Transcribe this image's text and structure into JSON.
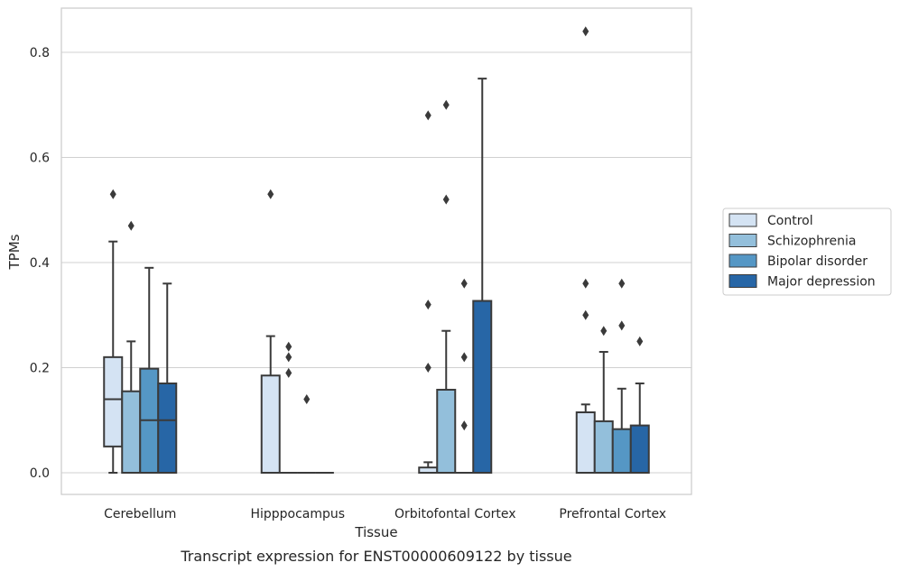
{
  "caption": "Transcript expression for ENST00000609122 by tissue",
  "colors": {
    "Control": "#d4e3f3",
    "Schizophrenia": "#93bfdb",
    "Bipolar disorder": "#5597c5",
    "Major depression": "#2766a6",
    "edge": "#3a3a3a",
    "grid": "#d0d0d0",
    "frame": "#cccccc"
  },
  "chart_data": {
    "type": "box",
    "xlabel": "Tissue",
    "ylabel": "TPMs",
    "ylim": [
      -0.04,
      0.885
    ],
    "yticks": [
      0.0,
      0.2,
      0.4,
      0.6,
      0.8
    ],
    "ytick_labels": [
      "0.0",
      "0.2",
      "0.4",
      "0.6",
      "0.8"
    ],
    "grid": "horizontal",
    "legend_position": "right",
    "categories": [
      "Cerebellum",
      "Hipppocampus",
      "Orbitofontal Cortex",
      "Prefrontal Cortex"
    ],
    "series": [
      {
        "name": "Control",
        "boxes": [
          {
            "q1": 0.05,
            "median": 0.14,
            "q3": 0.22,
            "whislo": 0.0,
            "whishi": 0.44,
            "fliers": [
              0.53
            ]
          },
          {
            "q1": 0.0,
            "median": 0.0,
            "q3": 0.185,
            "whislo": 0.0,
            "whishi": 0.26,
            "fliers": [
              0.53
            ]
          },
          {
            "q1": 0.0,
            "median": 0.0,
            "q3": 0.01,
            "whislo": 0.0,
            "whishi": 0.02,
            "fliers": [
              0.2,
              0.32,
              0.68
            ]
          },
          {
            "q1": 0.0,
            "median": 0.115,
            "q3": 0.115,
            "whislo": 0.0,
            "whishi": 0.13,
            "fliers": [
              0.3,
              0.36,
              0.84
            ]
          }
        ]
      },
      {
        "name": "Schizophrenia",
        "boxes": [
          {
            "q1": 0.0,
            "median": 0.0,
            "q3": 0.155,
            "whislo": 0.0,
            "whishi": 0.25,
            "fliers": [
              0.47
            ]
          },
          {
            "q1": 0.0,
            "median": 0.0,
            "q3": 0.0,
            "whislo": 0.0,
            "whishi": 0.0,
            "fliers": [
              0.19,
              0.22,
              0.24
            ]
          },
          {
            "q1": 0.0,
            "median": 0.0,
            "q3": 0.158,
            "whislo": 0.0,
            "whishi": 0.27,
            "fliers": [
              0.52,
              0.7
            ]
          },
          {
            "q1": 0.0,
            "median": 0.0,
            "q3": 0.098,
            "whislo": 0.0,
            "whishi": 0.23,
            "fliers": [
              0.27
            ]
          }
        ]
      },
      {
        "name": "Bipolar disorder",
        "boxes": [
          {
            "q1": 0.0,
            "median": 0.1,
            "q3": 0.198,
            "whislo": 0.0,
            "whishi": 0.39,
            "fliers": []
          },
          {
            "q1": 0.0,
            "median": 0.0,
            "q3": 0.0,
            "whislo": 0.0,
            "whishi": 0.0,
            "fliers": [
              0.14
            ]
          },
          {
            "q1": 0.0,
            "median": 0.0,
            "q3": 0.0,
            "whislo": 0.0,
            "whishi": 0.0,
            "fliers": [
              0.09,
              0.22,
              0.36
            ]
          },
          {
            "q1": 0.0,
            "median": 0.0,
            "q3": 0.083,
            "whislo": 0.0,
            "whishi": 0.16,
            "fliers": [
              0.28,
              0.36
            ]
          }
        ]
      },
      {
        "name": "Major depression",
        "boxes": [
          {
            "q1": 0.0,
            "median": 0.1,
            "q3": 0.17,
            "whislo": 0.0,
            "whishi": 0.36,
            "fliers": []
          },
          {
            "q1": 0.0,
            "median": 0.0,
            "q3": 0.0,
            "whislo": 0.0,
            "whishi": 0.0,
            "fliers": []
          },
          {
            "q1": 0.0,
            "median": 0.0,
            "q3": 0.327,
            "whislo": 0.0,
            "whishi": 0.75,
            "fliers": []
          },
          {
            "q1": 0.0,
            "median": 0.0,
            "q3": 0.09,
            "whislo": 0.0,
            "whishi": 0.17,
            "fliers": [
              0.25
            ]
          }
        ]
      }
    ]
  }
}
